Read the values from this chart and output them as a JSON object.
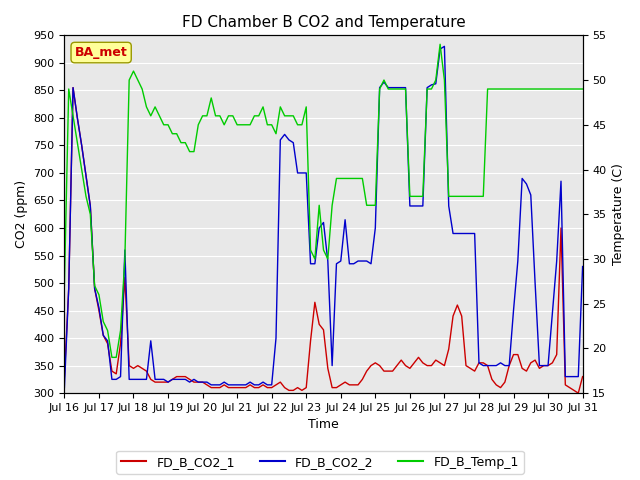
{
  "title": "FD Chamber B CO2 and Temperature",
  "xlabel": "Time",
  "ylabel_left": "CO2 (ppm)",
  "ylabel_right": "Temperature (C)",
  "ylim_left": [
    300,
    950
  ],
  "ylim_right": [
    15,
    55
  ],
  "yticks_left": [
    300,
    350,
    400,
    450,
    500,
    550,
    600,
    650,
    700,
    750,
    800,
    850,
    900,
    950
  ],
  "yticks_right": [
    15,
    20,
    25,
    30,
    35,
    40,
    45,
    50,
    55
  ],
  "xtick_labels": [
    "Jul 16",
    "Jul 17",
    "Jul 18",
    "Jul 19",
    "Jul 20",
    "Jul 21",
    "Jul 22",
    "Jul 23",
    "Jul 24",
    "Jul 25",
    "Jul 26",
    "Jul 27",
    "Jul 28",
    "Jul 29",
    "Jul 30",
    "Jul 31"
  ],
  "color_co2_1": "#cc0000",
  "color_co2_2": "#0000cc",
  "color_temp": "#00cc00",
  "legend_label_1": "FD_B_CO2_1",
  "legend_label_2": "FD_B_CO2_2",
  "legend_label_3": "FD_B_Temp_1",
  "watermark_text": "BA_met",
  "background_color": "#ffffff",
  "plot_bg_color": "#e8e8e8",
  "grid_color": "#ffffff",
  "x_days": [
    0.0,
    0.125,
    0.25,
    0.375,
    0.5,
    0.625,
    0.75,
    0.875,
    1.0,
    1.125,
    1.25,
    1.375,
    1.5,
    1.625,
    1.75,
    1.875,
    2.0,
    2.125,
    2.25,
    2.375,
    2.5,
    2.625,
    2.75,
    2.875,
    3.0,
    3.125,
    3.25,
    3.375,
    3.5,
    3.625,
    3.75,
    3.875,
    4.0,
    4.125,
    4.25,
    4.375,
    4.5,
    4.625,
    4.75,
    4.875,
    5.0,
    5.125,
    5.25,
    5.375,
    5.5,
    5.625,
    5.75,
    5.875,
    6.0,
    6.125,
    6.25,
    6.375,
    6.5,
    6.625,
    6.75,
    6.875,
    7.0,
    7.125,
    7.25,
    7.375,
    7.5,
    7.625,
    7.75,
    7.875,
    8.0,
    8.125,
    8.25,
    8.375,
    8.5,
    8.625,
    8.75,
    8.875,
    9.0,
    9.125,
    9.25,
    9.375,
    9.5,
    9.625,
    9.75,
    9.875,
    10.0,
    10.125,
    10.25,
    10.375,
    10.5,
    10.625,
    10.75,
    10.875,
    11.0,
    11.125,
    11.25,
    11.375,
    11.5,
    11.625,
    11.75,
    11.875,
    12.0,
    12.125,
    12.25,
    12.375,
    12.5,
    12.625,
    12.75,
    12.875,
    13.0,
    13.125,
    13.25,
    13.375,
    13.5,
    13.625,
    13.75,
    13.875,
    14.0,
    14.125,
    14.25,
    14.375,
    14.5,
    14.625,
    14.75,
    14.875,
    15.0
  ],
  "v_co2_1": [
    330,
    490,
    855,
    800,
    750,
    695,
    640,
    490,
    450,
    405,
    390,
    340,
    335,
    390,
    510,
    350,
    345,
    350,
    345,
    340,
    325,
    320,
    320,
    320,
    320,
    325,
    330,
    330,
    330,
    325,
    320,
    320,
    320,
    315,
    310,
    310,
    310,
    315,
    310,
    310,
    310,
    310,
    310,
    315,
    310,
    310,
    315,
    310,
    310,
    315,
    320,
    310,
    305,
    305,
    310,
    305,
    310,
    395,
    465,
    425,
    415,
    345,
    310,
    310,
    315,
    320,
    315,
    315,
    315,
    325,
    340,
    350,
    355,
    350,
    340,
    340,
    340,
    350,
    360,
    350,
    345,
    355,
    365,
    355,
    350,
    350,
    360,
    355,
    350,
    380,
    440,
    460,
    440,
    350,
    345,
    340,
    355,
    355,
    350,
    325,
    315,
    310,
    320,
    350,
    370,
    370,
    345,
    340,
    355,
    360,
    345,
    350,
    350,
    355,
    370,
    600,
    315,
    310,
    305,
    300,
    330
  ],
  "v_co2_2": [
    310,
    490,
    855,
    800,
    750,
    695,
    640,
    490,
    455,
    405,
    395,
    325,
    325,
    330,
    560,
    325,
    325,
    325,
    325,
    325,
    395,
    325,
    325,
    325,
    320,
    325,
    325,
    325,
    325,
    320,
    325,
    320,
    320,
    320,
    315,
    315,
    315,
    320,
    315,
    315,
    315,
    315,
    315,
    320,
    315,
    315,
    320,
    315,
    315,
    400,
    760,
    770,
    760,
    755,
    700,
    700,
    700,
    535,
    535,
    600,
    610,
    540,
    350,
    535,
    540,
    615,
    535,
    535,
    540,
    540,
    540,
    535,
    600,
    855,
    865,
    855,
    855,
    855,
    855,
    855,
    640,
    640,
    640,
    640,
    855,
    860,
    862,
    925,
    930,
    640,
    590,
    590,
    590,
    590,
    590,
    590,
    355,
    350,
    350,
    350,
    350,
    355,
    350,
    350,
    450,
    540,
    690,
    680,
    660,
    500,
    350,
    350,
    350,
    445,
    540,
    685,
    330,
    330,
    330,
    330,
    530
  ],
  "v_temp": [
    27,
    49,
    46,
    43,
    40,
    37,
    35,
    27,
    26,
    23,
    22,
    19,
    19,
    22,
    30,
    50,
    51,
    50,
    49,
    47,
    46,
    47,
    46,
    45,
    45,
    44,
    44,
    43,
    43,
    42,
    42,
    45,
    46,
    46,
    48,
    46,
    46,
    45,
    46,
    46,
    45,
    45,
    45,
    45,
    46,
    46,
    47,
    45,
    45,
    44,
    47,
    46,
    46,
    46,
    45,
    45,
    47,
    31,
    30,
    36,
    31,
    30,
    36,
    39,
    39,
    39,
    39,
    39,
    39,
    39,
    36,
    36,
    36,
    49,
    50,
    49,
    49,
    49,
    49,
    49,
    37,
    37,
    37,
    37,
    49,
    49,
    50,
    54,
    50,
    37,
    37,
    37,
    37,
    37,
    37,
    37,
    37,
    37,
    49,
    49,
    49,
    49,
    49,
    49,
    49,
    49,
    49,
    49,
    49,
    49,
    49,
    49,
    49,
    49,
    49,
    49,
    49,
    49,
    49,
    49,
    49
  ]
}
